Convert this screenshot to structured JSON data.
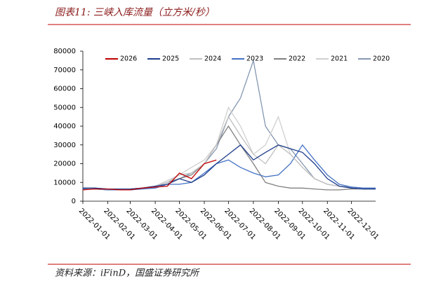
{
  "header": {
    "title": "图表11: 三峡入库流量（立方米/秒）"
  },
  "footer": {
    "source": "资料来源：iFinD，国盛证券研究所"
  },
  "chart_data": {
    "type": "line",
    "x": [
      "2022-01-01",
      "2022-01-16",
      "2022-02-01",
      "2022-02-16",
      "2022-03-01",
      "2022-03-16",
      "2022-04-01",
      "2022-04-16",
      "2022-05-01",
      "2022-05-16",
      "2022-06-01",
      "2022-06-16",
      "2022-07-01",
      "2022-07-16",
      "2022-08-01",
      "2022-08-16",
      "2022-09-01",
      "2022-09-16",
      "2022-10-01",
      "2022-10-16",
      "2022-11-01",
      "2022-11-16",
      "2022-12-01",
      "2022-12-16",
      "2022-12-31"
    ],
    "xlim": [
      "2022-01-01",
      "2022-12-31"
    ],
    "xticks": [
      "2022-01-01",
      "2022-02-01",
      "2022-03-01",
      "2022-04-01",
      "2022-05-01",
      "2022-06-01",
      "2022-07-01",
      "2022-08-01",
      "2022-09-01",
      "2022-10-01",
      "2022-11-01",
      "2022-12-01"
    ],
    "ylim": [
      0,
      80000
    ],
    "yticks": [
      0,
      10000,
      20000,
      30000,
      40000,
      50000,
      60000,
      70000,
      80000
    ],
    "series": [
      {
        "name": "2026",
        "color": "#c00000",
        "values": [
          6000,
          6500,
          6500,
          6000,
          6000,
          7000,
          7500,
          8000,
          15000,
          12000,
          20000,
          22000,
          null,
          null,
          null,
          null,
          null,
          null,
          null,
          null,
          null,
          null,
          null,
          null,
          null
        ]
      },
      {
        "name": "2025",
        "color": "#1f3d8c",
        "values": [
          7000,
          7000,
          6500,
          6500,
          6500,
          7000,
          8000,
          9000,
          12000,
          10000,
          14000,
          20000,
          25000,
          30000,
          22000,
          26000,
          30000,
          28000,
          26000,
          20000,
          12000,
          8000,
          7000,
          6500,
          6500
        ]
      },
      {
        "name": "2024",
        "color": "#bfbfbf",
        "values": [
          7000,
          6500,
          6500,
          6000,
          6500,
          7000,
          8000,
          10000,
          14000,
          15000,
          20000,
          30000,
          45000,
          35000,
          25000,
          20000,
          30000,
          25000,
          18000,
          12000,
          9000,
          8000,
          7000,
          6500,
          6500
        ]
      },
      {
        "name": "2023",
        "color": "#4472c4",
        "values": [
          6500,
          6500,
          6000,
          6000,
          6000,
          6500,
          7000,
          9000,
          9000,
          10000,
          15000,
          20000,
          22000,
          18000,
          15000,
          13000,
          14000,
          20000,
          30000,
          22000,
          14000,
          9000,
          7500,
          7000,
          7000
        ]
      },
      {
        "name": "2022",
        "color": "#808080",
        "values": [
          7000,
          6500,
          6000,
          6000,
          6500,
          7000,
          8000,
          10000,
          12000,
          14000,
          20000,
          30000,
          40000,
          30000,
          20000,
          10000,
          8000,
          7000,
          7000,
          6500,
          6000,
          6000,
          6500,
          6500,
          6500
        ]
      },
      {
        "name": "2021",
        "color": "#d0d0d0",
        "values": [
          6500,
          6500,
          6000,
          6000,
          6500,
          7000,
          8000,
          11000,
          14000,
          18000,
          22000,
          30000,
          50000,
          40000,
          25000,
          30000,
          45000,
          25000,
          18000,
          12000,
          9000,
          8000,
          7000,
          7000,
          7000
        ]
      },
      {
        "name": "2020",
        "color": "#8497b0",
        "values": [
          7000,
          7000,
          6500,
          6000,
          6500,
          7000,
          8000,
          9000,
          12000,
          15000,
          20000,
          28000,
          45000,
          55000,
          75000,
          40000,
          30000,
          28000,
          20000,
          12000,
          9000,
          8000,
          7500,
          7000,
          7000
        ]
      }
    ]
  }
}
